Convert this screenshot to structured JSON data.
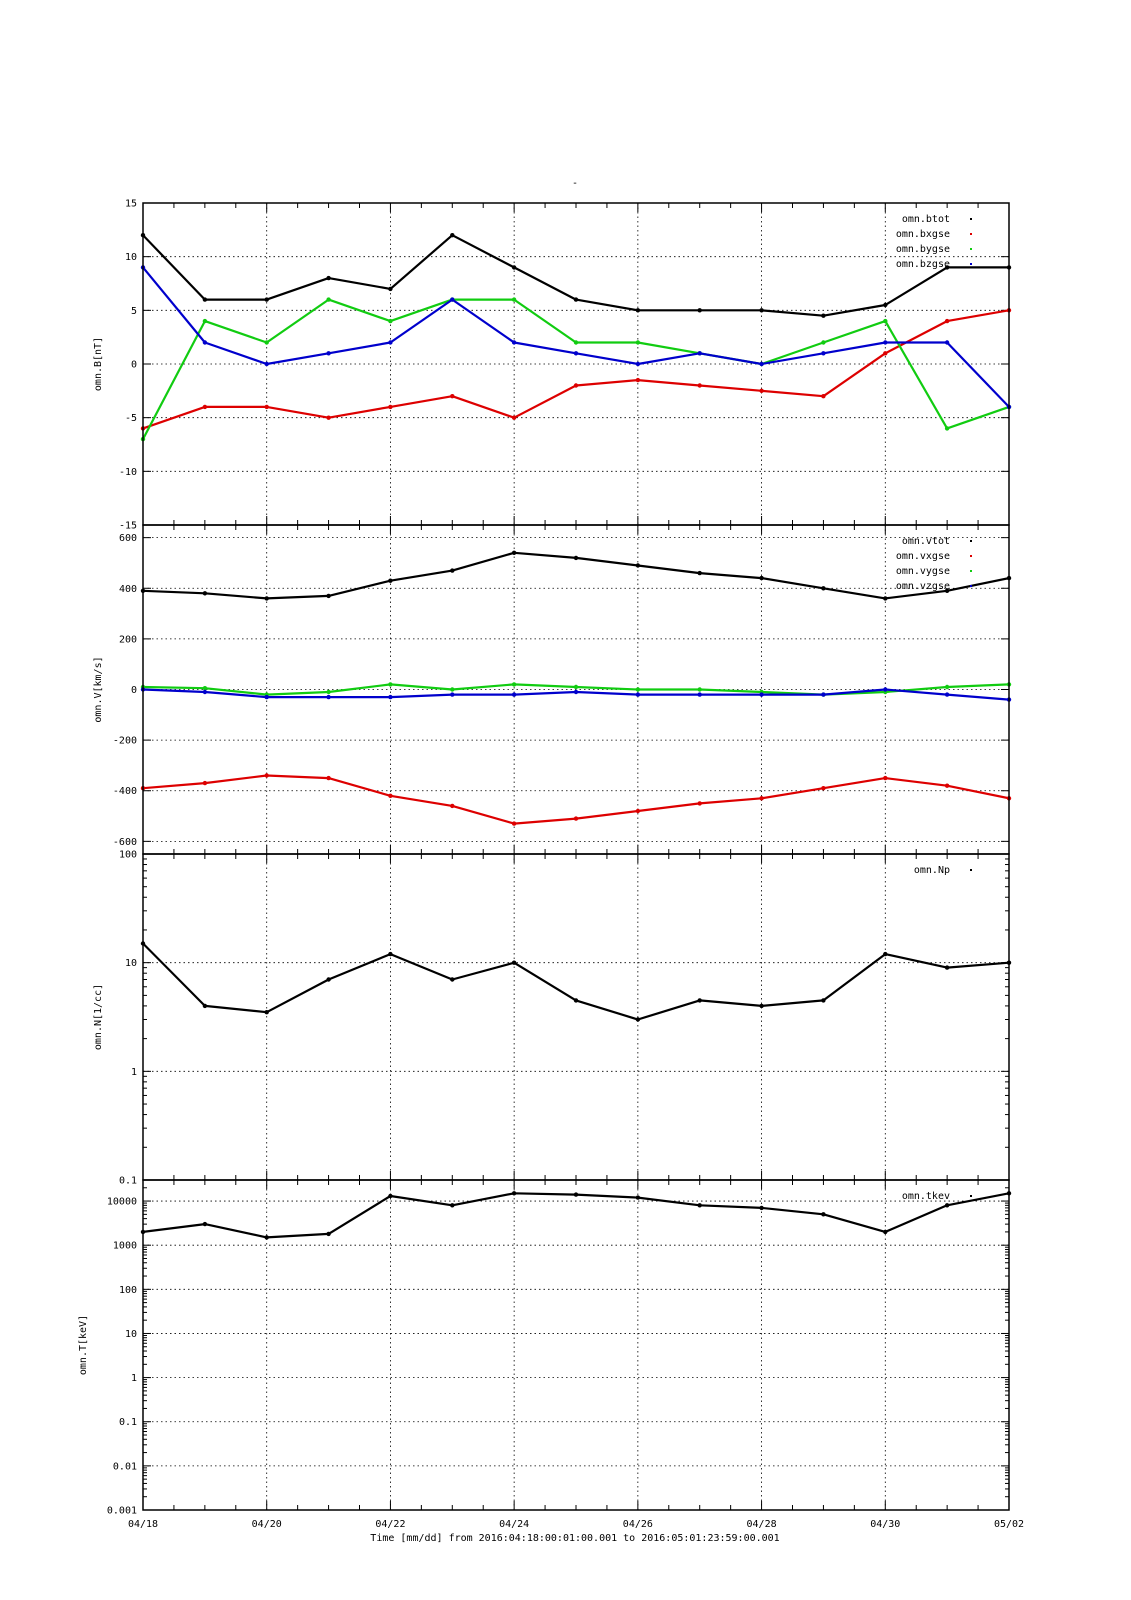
{
  "page_title": "-",
  "x_axis": {
    "tick_labels": [
      "04/18",
      "04/20",
      "04/22",
      "04/24",
      "04/26",
      "04/28",
      "04/30",
      "05/02"
    ],
    "tick_days": [
      0,
      2,
      4,
      6,
      8,
      10,
      12,
      14
    ],
    "range": [
      "04/18",
      "05/02"
    ],
    "label": "Time [mm/dd]  from 2016:04:18:00:01:00.001  to  2016:05:01:23:59:00.001"
  },
  "colors": {
    "black": "#000000",
    "red": "#dd0000",
    "green": "#11cc11",
    "blue": "#0000cc"
  },
  "chart_data": [
    {
      "type": "scatter",
      "ylabel": "omn.B[nT]",
      "ylim": [
        -15,
        15
      ],
      "yscale": "linear",
      "yticks": [
        15,
        10,
        5,
        0,
        -5,
        -10,
        -15
      ],
      "ytick_labels": [
        "15",
        "10",
        "5",
        "0",
        "-5",
        "-10",
        "-15"
      ],
      "grid": true,
      "legend": "top-right",
      "x": [
        "04/18",
        "04/19",
        "04/20",
        "04/21",
        "04/22",
        "04/23",
        "04/24",
        "04/25",
        "04/26",
        "04/27",
        "04/28",
        "04/29",
        "04/30",
        "05/01",
        "05/02"
      ],
      "series": [
        {
          "name": "omn.btot",
          "color": "#000000",
          "values": [
            12,
            6,
            6,
            8,
            7,
            12,
            9,
            6,
            5,
            5,
            5,
            4.5,
            5.5,
            9,
            9
          ]
        },
        {
          "name": "omn.bxgse",
          "color": "#dd0000",
          "values": [
            -6,
            -4,
            -4,
            -5,
            -4,
            -3,
            -5,
            -2,
            -1.5,
            -2,
            -2.5,
            -3,
            1,
            4,
            5
          ]
        },
        {
          "name": "omn.bygse",
          "color": "#11cc11",
          "values": [
            -7,
            4,
            2,
            6,
            4,
            6,
            6,
            2,
            2,
            1,
            0,
            2,
            4,
            -6,
            -4
          ]
        },
        {
          "name": "omn.bzgse",
          "color": "#0000cc",
          "values": [
            9,
            2,
            0,
            1,
            2,
            6,
            2,
            1,
            0,
            1,
            0,
            1,
            2,
            2,
            -4
          ]
        }
      ]
    },
    {
      "type": "scatter",
      "ylabel": "omn.V[km/s]",
      "ylim": [
        -650,
        650
      ],
      "yscale": "linear",
      "yticks": [
        600,
        400,
        200,
        0,
        -200,
        -400,
        -600
      ],
      "ytick_labels": [
        "600",
        "400",
        "200",
        "0",
        "-200",
        "-400",
        "-600"
      ],
      "grid": true,
      "legend": "top-right",
      "x": [
        "04/18",
        "04/19",
        "04/20",
        "04/21",
        "04/22",
        "04/23",
        "04/24",
        "04/25",
        "04/26",
        "04/27",
        "04/28",
        "04/29",
        "04/30",
        "05/01",
        "05/02"
      ],
      "series": [
        {
          "name": "omn.vtot",
          "color": "#000000",
          "values": [
            390,
            380,
            360,
            370,
            430,
            470,
            540,
            520,
            490,
            460,
            440,
            400,
            360,
            390,
            440
          ]
        },
        {
          "name": "omn.vxgse",
          "color": "#dd0000",
          "values": [
            -390,
            -370,
            -340,
            -350,
            -420,
            -460,
            -530,
            -510,
            -480,
            -450,
            -430,
            -390,
            -350,
            -380,
            -430
          ]
        },
        {
          "name": "omn.vygse",
          "color": "#11cc11",
          "values": [
            10,
            5,
            -20,
            -10,
            20,
            0,
            20,
            10,
            0,
            0,
            -10,
            -20,
            -10,
            10,
            20
          ]
        },
        {
          "name": "omn.vzgse",
          "color": "#0000cc",
          "values": [
            0,
            -10,
            -30,
            -30,
            -30,
            -20,
            -20,
            -10,
            -20,
            -20,
            -20,
            -20,
            0,
            -20,
            -40
          ]
        }
      ]
    },
    {
      "type": "scatter",
      "ylabel": "omn.N[1/cc]",
      "ylim": [
        0.1,
        100
      ],
      "yscale": "log",
      "yticks": [
        100,
        10,
        1,
        0.1
      ],
      "ytick_labels": [
        "100",
        "10",
        "1",
        "0.1"
      ],
      "grid": true,
      "legend": "top-right",
      "x": [
        "04/18",
        "04/19",
        "04/20",
        "04/21",
        "04/22",
        "04/23",
        "04/24",
        "04/25",
        "04/26",
        "04/27",
        "04/28",
        "04/29",
        "04/30",
        "05/01",
        "05/02"
      ],
      "series": [
        {
          "name": "omn.Np",
          "color": "#000000",
          "values": [
            15,
            4,
            3.5,
            7,
            12,
            7,
            10,
            4.5,
            3,
            4.5,
            4,
            4.5,
            12,
            9,
            10
          ]
        }
      ]
    },
    {
      "type": "scatter",
      "ylabel": "omn.T[keV]",
      "ylim": [
        0.001,
        30000
      ],
      "yscale": "log",
      "yticks": [
        10000,
        1000,
        100,
        10,
        1,
        0.1,
        0.01,
        0.001
      ],
      "ytick_labels": [
        "10000",
        "1000",
        "100",
        "10",
        "1",
        "0.1",
        "0.01",
        "0.001"
      ],
      "grid": true,
      "legend": "top-right",
      "x": [
        "04/18",
        "04/19",
        "04/20",
        "04/21",
        "04/22",
        "04/23",
        "04/24",
        "04/25",
        "04/26",
        "04/27",
        "04/28",
        "04/29",
        "04/30",
        "05/01",
        "05/02"
      ],
      "series": [
        {
          "name": "omn.tkev",
          "color": "#000000",
          "values": [
            2000,
            3000,
            1500,
            1800,
            13000,
            8000,
            15000,
            14000,
            12000,
            8000,
            7000,
            5000,
            2000,
            8000,
            15000
          ]
        }
      ]
    }
  ]
}
